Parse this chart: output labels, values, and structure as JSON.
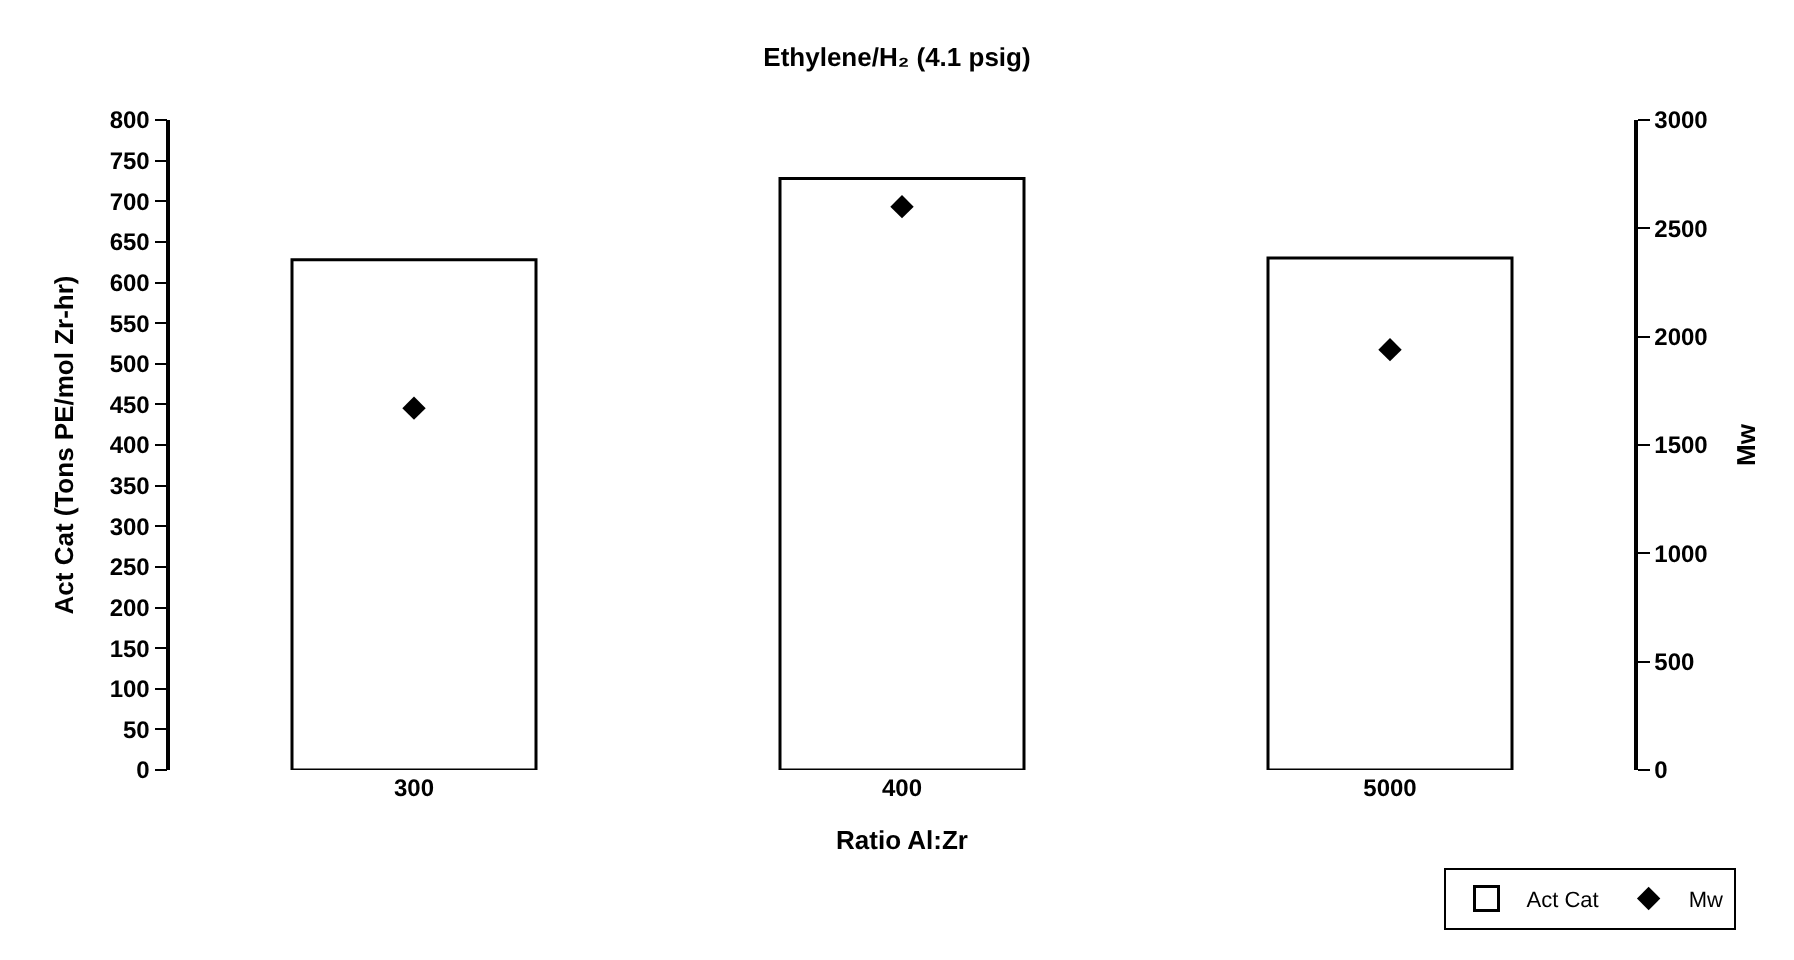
{
  "chart_data": {
    "type": "bar",
    "title": "Ethylene/H₂ (4.1 psig)",
    "xlabel": "Ratio Al:Zr",
    "ylabel": "Act Cat (Tons PE/mol Zr-hr)",
    "y2label": "Mw",
    "categories": [
      "300",
      "400",
      "5000"
    ],
    "series": [
      {
        "name": "Act Cat",
        "color": "#ffffff",
        "values": [
          628,
          728,
          630
        ]
      },
      {
        "name": "Mw",
        "type": "scatter",
        "axis": "y2",
        "color": "#000000",
        "marker": "diamond",
        "values": [
          1670,
          2600,
          1940
        ]
      }
    ],
    "ylim": [
      0,
      800
    ],
    "yticks": [
      0,
      50,
      100,
      150,
      200,
      250,
      300,
      350,
      400,
      450,
      500,
      550,
      600,
      650,
      700,
      750,
      800
    ],
    "y2lim": [
      0,
      3000
    ],
    "y2ticks": [
      0,
      500,
      1000,
      1500,
      2000,
      2500,
      3000
    ],
    "legend": "bottom right"
  }
}
